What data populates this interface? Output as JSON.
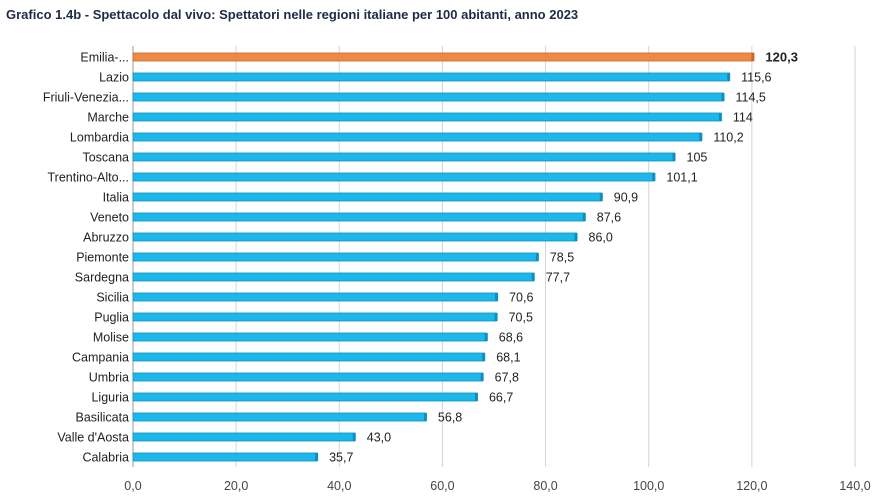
{
  "chart_data": {
    "type": "bar",
    "orientation": "horizontal",
    "title": "Grafico 1.4b - Spettacolo dal vivo: Spettatori nelle regioni italiane per 100 abitanti, anno 2023",
    "xlabel": "",
    "ylabel": "",
    "xlim": [
      0,
      140
    ],
    "x_ticks": [
      "0,0",
      "20,0",
      "40,0",
      "60,0",
      "80,0",
      "100,0",
      "120,0",
      "140,0"
    ],
    "grid": true,
    "categories": [
      "Emilia-...",
      "Lazio",
      "Friuli-Venezia...",
      "Marche",
      "Lombardia",
      "Toscana",
      "Trentino-Alto...",
      "Italia",
      "Veneto",
      "Abruzzo",
      "Piemonte",
      "Sardegna",
      "Sicilia",
      "Puglia",
      "Molise",
      "Campania",
      "Umbria",
      "Liguria",
      "Basilicata",
      "Valle d'Aosta",
      "Calabria"
    ],
    "values": [
      120.3,
      115.6,
      114.5,
      114,
      110.2,
      105,
      101.1,
      90.9,
      87.6,
      86.0,
      78.5,
      77.7,
      70.6,
      70.5,
      68.6,
      68.1,
      67.8,
      66.7,
      56.8,
      43.0,
      35.7
    ],
    "value_labels": [
      "120,3",
      "115,6",
      "114,5",
      "114",
      "110,2",
      "105",
      "101,1",
      "90,9",
      "87,6",
      "86,0",
      "78,5",
      "77,7",
      "70,6",
      "70,5",
      "68,6",
      "68,1",
      "67,8",
      "66,7",
      "56,8",
      "43,0",
      "35,7"
    ],
    "highlight_index": 0,
    "colors": {
      "bar": "#1cb8ec",
      "bar_edge": "#0f8fbf",
      "highlight": "#ed8b45",
      "highlight_edge": "#c9682a",
      "grid": "#d4d4d4",
      "axis": "#9a9a9a"
    }
  }
}
